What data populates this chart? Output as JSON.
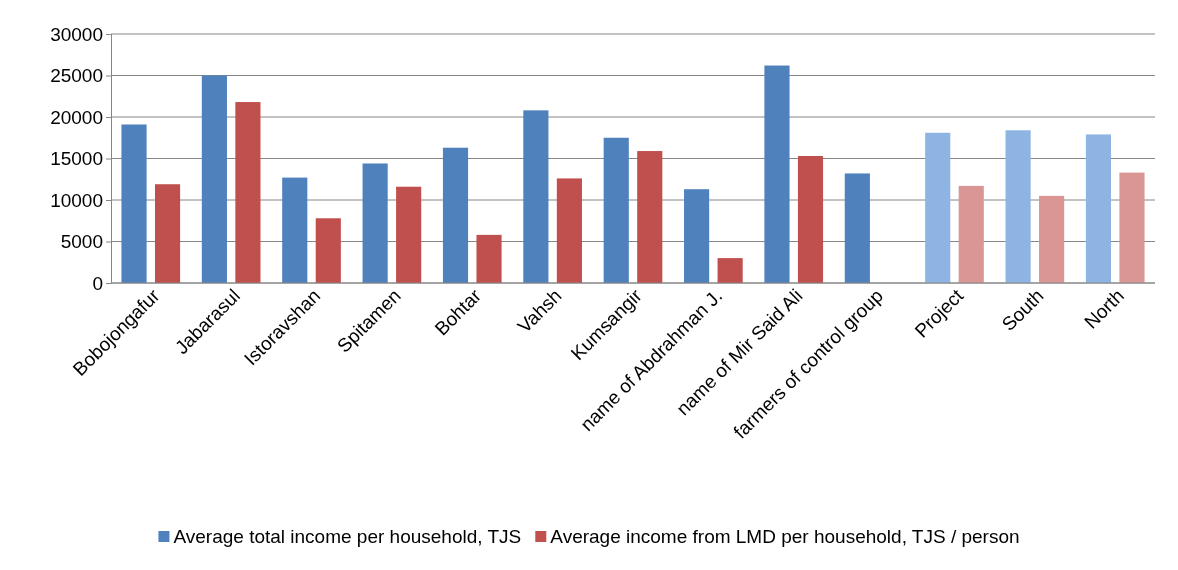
{
  "chart_data": {
    "type": "bar",
    "categories": [
      "Bobojongafur",
      "Jabarasul",
      "Istoravshan",
      "Spitamen",
      "Bohtar",
      "Vahsh",
      "Kumsangir",
      "name of Abdrahman J.",
      "name of Mir Said Ali",
      "farmers of control group",
      "Project",
      "South",
      "North"
    ],
    "series": [
      {
        "name": "Average total income per household, TJS",
        "color": "#4f81bd",
        "colors": [
          "#4f81bd",
          "#4f81bd",
          "#4f81bd",
          "#4f81bd",
          "#4f81bd",
          "#4f81bd",
          "#4f81bd",
          "#4f81bd",
          "#4f81bd",
          "#4f81bd",
          "#8eb4e3",
          "#8eb4e3",
          "#8eb4e3"
        ],
        "values": [
          19100,
          25000,
          12700,
          14400,
          16300,
          20800,
          17500,
          11300,
          26200,
          13200,
          18100,
          18400,
          17900
        ]
      },
      {
        "name": "Average income from LMD per household, TJS / person",
        "color": "#c0504d",
        "colors": [
          "#c0504d",
          "#c0504d",
          "#c0504d",
          "#c0504d",
          "#c0504d",
          "#c0504d",
          "#c0504d",
          "#c0504d",
          "#c0504d",
          null,
          "#d99694",
          "#d99694",
          "#d99694"
        ],
        "values": [
          11900,
          21800,
          7800,
          11600,
          5800,
          12600,
          15900,
          3000,
          15300,
          null,
          11700,
          10500,
          13300
        ]
      }
    ],
    "ylim": [
      0,
      30000
    ],
    "yticks": [
      0,
      5000,
      10000,
      15000,
      20000,
      25000,
      30000
    ],
    "grid": "y",
    "legend": "bottom"
  }
}
